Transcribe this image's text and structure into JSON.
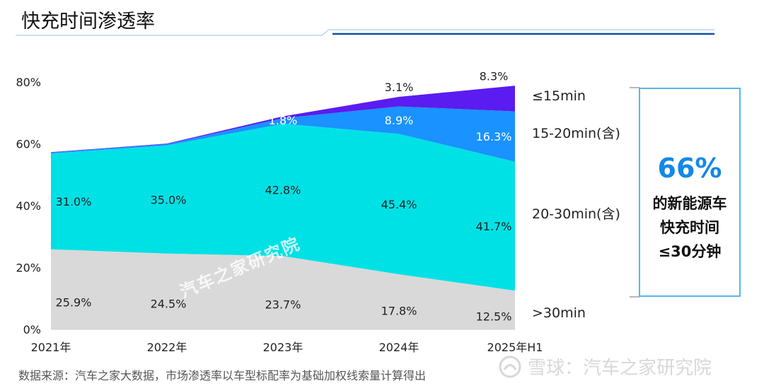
{
  "title": "快充时间渗透率",
  "colors": {
    "accent_line": "#0d4ea8",
    "callout_border": "#57b7e6",
    "callout_number": "#1588e6"
  },
  "chart_data": {
    "type": "area",
    "stacked": true,
    "categories": [
      "2021年",
      "2022年",
      "2023年",
      "2024年",
      "2025年H1"
    ],
    "yticks": [
      "0%",
      "20%",
      "40%",
      "60%",
      "80%"
    ],
    "ylim": [
      0,
      80
    ],
    "unit": "%",
    "series": [
      {
        "name": ">30min",
        "color": "#d9d9d9",
        "values": [
          25.9,
          24.5,
          23.7,
          17.8,
          12.5
        ],
        "labels": [
          "25.9%",
          "24.5%",
          "23.7%",
          "17.8%",
          "12.5%"
        ],
        "label_color": "#222222"
      },
      {
        "name": "20-30min(含)",
        "color": "#00e1e6",
        "values": [
          31.0,
          35.0,
          42.8,
          45.4,
          41.7
        ],
        "labels": [
          "31.0%",
          "35.0%",
          "42.8%",
          "45.4%",
          "41.7%"
        ],
        "label_color": "#222222"
      },
      {
        "name": "15-20min(含)",
        "color": "#1a92ff",
        "values": [
          0.3,
          0.4,
          1.8,
          8.9,
          16.3
        ],
        "labels": [
          "",
          "",
          "1.8%",
          "8.9%",
          "16.3%"
        ],
        "label_color": "#ffffff"
      },
      {
        "name": "≤15min",
        "color": "#5a1cf0",
        "values": [
          0.1,
          0.2,
          0.6,
          3.1,
          8.3
        ],
        "labels": [
          "",
          "",
          "",
          "3.1%",
          "8.3%"
        ],
        "label_color": "#222222"
      }
    ]
  },
  "callout": {
    "value": "66%",
    "line1": "的新能源车",
    "line2": "快充时间",
    "line3": "≤30分钟"
  },
  "watermark": "汽车之家研究院",
  "source": "数据来源：汽车之家大数据，市场渗透率以车型标配率为基础加权线索量计算得出",
  "brand": {
    "text": "雪球：汽车之家研究院",
    "icon": "snowball-logo-icon"
  }
}
